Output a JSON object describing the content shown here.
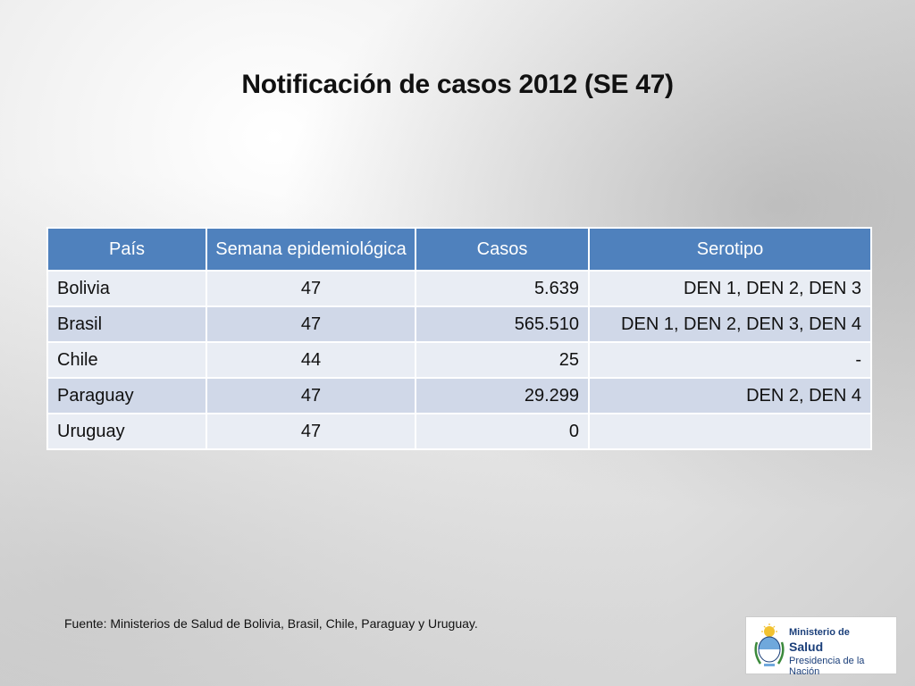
{
  "slide": {
    "title": "Notificación de casos 2012 (SE 47)",
    "source": "Fuente: Ministerios de Salud de Bolivia, Brasil, Chile, Paraguay y Uruguay."
  },
  "table": {
    "headers": [
      "País",
      "Semana epidemiológica",
      "Casos",
      "Serotipo"
    ],
    "rows": [
      {
        "pais": "Bolivia",
        "semana": "47",
        "casos": "5.639",
        "serotipo": "DEN 1, DEN 2, DEN 3"
      },
      {
        "pais": "Brasil",
        "semana": "47",
        "casos": "565.510",
        "serotipo": "DEN 1, DEN 2, DEN 3, DEN 4"
      },
      {
        "pais": "Chile",
        "semana": "44",
        "casos": "25",
        "serotipo": "-"
      },
      {
        "pais": "Paraguay",
        "semana": "47",
        "casos": "29.299",
        "serotipo": "DEN 2, DEN 4"
      },
      {
        "pais": "Uruguay",
        "semana": "47",
        "casos": "0",
        "serotipo": ""
      }
    ]
  },
  "logo": {
    "line1": "Ministerio de",
    "line2": "Salud",
    "line3": "Presidencia de la Nación",
    "icon": "argentina-coat-of-arms-icon"
  },
  "colors": {
    "header": "#4f81bd",
    "row_light": "#e9edf4",
    "row_dark": "#d0d8e8"
  }
}
